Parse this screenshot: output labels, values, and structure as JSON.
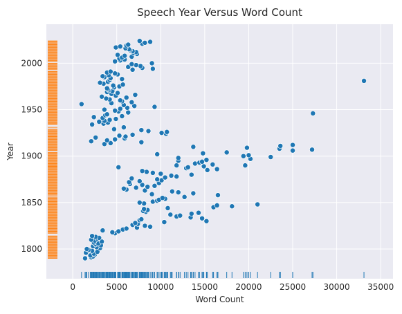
{
  "chart_data": {
    "type": "scatter",
    "title": "Speech Year Versus Word Count",
    "xlabel": "Word Count",
    "ylabel": "Year",
    "xlim": [
      -3000,
      36400
    ],
    "ylim": [
      1768,
      2042
    ],
    "xticks": [
      0,
      5000,
      10000,
      15000,
      20000,
      25000,
      30000,
      35000
    ],
    "yticks": [
      1800,
      1850,
      1900,
      1950,
      2000
    ],
    "grid": true,
    "background": "#eaeaf2",
    "point_color": "#1f77b4",
    "rug_x_color": "#1f77b4",
    "rug_y_color": "#ff7f0e",
    "rug_note": "marginal rug plots: word count along x-axis bottom, year along y-axis left",
    "points": [
      [
        1400,
        1790
      ],
      [
        2100,
        1791
      ],
      [
        2300,
        1792
      ],
      [
        2000,
        1793
      ],
      [
        2500,
        1794
      ],
      [
        2400,
        1795
      ],
      [
        1500,
        1796
      ],
      [
        2800,
        1797
      ],
      [
        2200,
        1798
      ],
      [
        1800,
        1799
      ],
      [
        1600,
        1800
      ],
      [
        3100,
        1801
      ],
      [
        2700,
        1802
      ],
      [
        2300,
        1803
      ],
      [
        3200,
        1804
      ],
      [
        2600,
        1805
      ],
      [
        2900,
        1806
      ],
      [
        2400,
        1807
      ],
      [
        3300,
        1808
      ],
      [
        2500,
        1809
      ],
      [
        2100,
        1810
      ],
      [
        2800,
        1811
      ],
      [
        3000,
        1812
      ],
      [
        2600,
        1813
      ],
      [
        2200,
        1814
      ],
      [
        4800,
        1817
      ],
      [
        4500,
        1818
      ],
      [
        5200,
        1819
      ],
      [
        3400,
        1820
      ],
      [
        5700,
        1821
      ],
      [
        6100,
        1822
      ],
      [
        7300,
        1823
      ],
      [
        8800,
        1824
      ],
      [
        8200,
        1825
      ],
      [
        6800,
        1826
      ],
      [
        7400,
        1827
      ],
      [
        7100,
        1828
      ],
      [
        10400,
        1829
      ],
      [
        15200,
        1830
      ],
      [
        7600,
        1831
      ],
      [
        7800,
        1832
      ],
      [
        14700,
        1833
      ],
      [
        13400,
        1834
      ],
      [
        11800,
        1835
      ],
      [
        12200,
        1836
      ],
      [
        11100,
        1837
      ],
      [
        13500,
        1838
      ],
      [
        14300,
        1839
      ],
      [
        8300,
        1840
      ],
      [
        8000,
        1841
      ],
      [
        8500,
        1842
      ],
      [
        8100,
        1843
      ],
      [
        10800,
        1844
      ],
      [
        16000,
        1845
      ],
      [
        18100,
        1846
      ],
      [
        16400,
        1847
      ],
      [
        21000,
        1848
      ],
      [
        8100,
        1849
      ],
      [
        7600,
        1850
      ],
      [
        9100,
        1851
      ],
      [
        9600,
        1852
      ],
      [
        9800,
        1853
      ],
      [
        10500,
        1854
      ],
      [
        10200,
        1855
      ],
      [
        12700,
        1856
      ],
      [
        16500,
        1858
      ],
      [
        9000,
        1859
      ],
      [
        13700,
        1860
      ],
      [
        12000,
        1861
      ],
      [
        11300,
        1862
      ],
      [
        8200,
        1863
      ],
      [
        6100,
        1864
      ],
      [
        5800,
        1865
      ],
      [
        7200,
        1866
      ],
      [
        8500,
        1867
      ],
      [
        9300,
        1868
      ],
      [
        7900,
        1869
      ],
      [
        6500,
        1870
      ],
      [
        9800,
        1871
      ],
      [
        6400,
        1872
      ],
      [
        7600,
        1873
      ],
      [
        10100,
        1874
      ],
      [
        9600,
        1875
      ],
      [
        6700,
        1876
      ],
      [
        10500,
        1877
      ],
      [
        11800,
        1878
      ],
      [
        11200,
        1879
      ],
      [
        13500,
        1880
      ],
      [
        10000,
        1881
      ],
      [
        9100,
        1882
      ],
      [
        8400,
        1883
      ],
      [
        7900,
        1884
      ],
      [
        15300,
        1885
      ],
      [
        16400,
        1886
      ],
      [
        12900,
        1887
      ],
      [
        13100,
        1888
      ],
      [
        5200,
        1888
      ],
      [
        14900,
        1889
      ],
      [
        19600,
        1890
      ],
      [
        11800,
        1890
      ],
      [
        15900,
        1891
      ],
      [
        13900,
        1892
      ],
      [
        14400,
        1893
      ],
      [
        14700,
        1894
      ],
      [
        12000,
        1895
      ],
      [
        15200,
        1896
      ],
      [
        20200,
        1897
      ],
      [
        12000,
        1898
      ],
      [
        22500,
        1899
      ],
      [
        19400,
        1900
      ],
      [
        20000,
        1901
      ],
      [
        9600,
        1902
      ],
      [
        14800,
        1903
      ],
      [
        17500,
        1904
      ],
      [
        25000,
        1906
      ],
      [
        27200,
        1907
      ],
      [
        23500,
        1908
      ],
      [
        19800,
        1909
      ],
      [
        13700,
        1910
      ],
      [
        23600,
        1911
      ],
      [
        25000,
        1912
      ],
      [
        3600,
        1913
      ],
      [
        4300,
        1914
      ],
      [
        7800,
        1915
      ],
      [
        2100,
        1916
      ],
      [
        3900,
        1917
      ],
      [
        4800,
        1918
      ],
      [
        5900,
        1919
      ],
      [
        2600,
        1920
      ],
      [
        6000,
        1921
      ],
      [
        5300,
        1922
      ],
      [
        6800,
        1923
      ],
      [
        10600,
        1924
      ],
      [
        10100,
        1925
      ],
      [
        10700,
        1926
      ],
      [
        8600,
        1927
      ],
      [
        7800,
        1928
      ],
      [
        4700,
        1929
      ],
      [
        5800,
        1931
      ],
      [
        2200,
        1934
      ],
      [
        3500,
        1935
      ],
      [
        4000,
        1936
      ],
      [
        3000,
        1937
      ],
      [
        3600,
        1938
      ],
      [
        4200,
        1939
      ],
      [
        4900,
        1940
      ],
      [
        3400,
        1941
      ],
      [
        2400,
        1942
      ],
      [
        5600,
        1943
      ],
      [
        3700,
        1944
      ],
      [
        3900,
        1945
      ],
      [
        27300,
        1946
      ],
      [
        6300,
        1947
      ],
      [
        5200,
        1948
      ],
      [
        4800,
        1949
      ],
      [
        3600,
        1950
      ],
      [
        5400,
        1951
      ],
      [
        6200,
        1952
      ],
      [
        9300,
        1953
      ],
      [
        7000,
        1954
      ],
      [
        5800,
        1955
      ],
      [
        1000,
        1956
      ],
      [
        4400,
        1957
      ],
      [
        6700,
        1958
      ],
      [
        5600,
        1959
      ],
      [
        5400,
        1960
      ],
      [
        4200,
        1961
      ],
      [
        3800,
        1962
      ],
      [
        6100,
        1963
      ],
      [
        3300,
        1964
      ],
      [
        4900,
        1965
      ],
      [
        7100,
        1966
      ],
      [
        4400,
        1967
      ],
      [
        5100,
        1968
      ],
      [
        3900,
        1969
      ],
      [
        4500,
        1970
      ],
      [
        4100,
        1971
      ],
      [
        4000,
        1972
      ],
      [
        3900,
        1973
      ],
      [
        4700,
        1974
      ],
      [
        5300,
        1975
      ],
      [
        4600,
        1976
      ],
      [
        5700,
        1977
      ],
      [
        3500,
        1978
      ],
      [
        3100,
        1979
      ],
      [
        4000,
        1980
      ],
      [
        33100,
        1981
      ],
      [
        4200,
        1982
      ],
      [
        5600,
        1983
      ],
      [
        4300,
        1984
      ],
      [
        3600,
        1985
      ],
      [
        3400,
        1986
      ],
      [
        4100,
        1987
      ],
      [
        5100,
        1988
      ],
      [
        4800,
        1989
      ],
      [
        3900,
        1990
      ],
      [
        4300,
        1991
      ],
      [
        6800,
        1993
      ],
      [
        9100,
        1994
      ],
      [
        7900,
        1995
      ],
      [
        6300,
        1996
      ],
      [
        7700,
        1997
      ],
      [
        7200,
        1998
      ],
      [
        6700,
        1999
      ],
      [
        9000,
        2000
      ],
      [
        4800,
        2002
      ],
      [
        5400,
        2003
      ],
      [
        5900,
        2004
      ],
      [
        5300,
        2005
      ],
      [
        5600,
        2006
      ],
      [
        6700,
        2007
      ],
      [
        5900,
        2008
      ],
      [
        5100,
        2009
      ],
      [
        7300,
        2010
      ],
      [
        6900,
        2011
      ],
      [
        7200,
        2012
      ],
      [
        6800,
        2013
      ],
      [
        6500,
        2014
      ],
      [
        6400,
        2015
      ],
      [
        6000,
        2016
      ],
      [
        4900,
        2017
      ],
      [
        5400,
        2018
      ],
      [
        6100,
        2019
      ],
      [
        6300,
        2020
      ],
      [
        7900,
        2021
      ],
      [
        8200,
        2022
      ],
      [
        8800,
        2023
      ],
      [
        7600,
        2024
      ]
    ]
  }
}
